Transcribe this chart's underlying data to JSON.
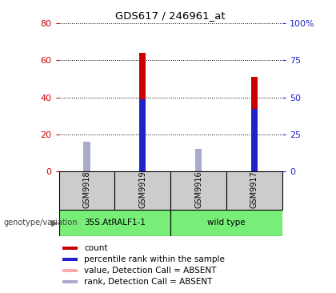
{
  "title": "GDS617 / 246961_at",
  "samples": [
    "GSM9918",
    "GSM9919",
    "GSM9916",
    "GSM9917"
  ],
  "count_values": [
    0,
    64,
    0,
    51
  ],
  "percentile_values": [
    0,
    49,
    0,
    42
  ],
  "absent_value_values": [
    16,
    0,
    9,
    0
  ],
  "absent_rank_values": [
    20,
    0,
    15,
    0
  ],
  "ylim_left": [
    0,
    80
  ],
  "ylim_right": [
    0,
    100
  ],
  "yticks_left": [
    0,
    20,
    40,
    60,
    80
  ],
  "yticks_right": [
    0,
    25,
    50,
    75,
    100
  ],
  "ytick_labels_right": [
    "0",
    "25",
    "50",
    "75",
    "100%"
  ],
  "color_count": "#cc0000",
  "color_percentile": "#2222cc",
  "color_absent_value": "#ffaaaa",
  "color_absent_rank": "#aaaacc",
  "color_group": "#77ee77",
  "color_sample_bg": "#cccccc",
  "background_color": "#ffffff",
  "legend_items": [
    "count",
    "percentile rank within the sample",
    "value, Detection Call = ABSENT",
    "rank, Detection Call = ABSENT"
  ],
  "legend_colors": [
    "#cc0000",
    "#2222cc",
    "#ffaaaa",
    "#aaaacc"
  ],
  "thin_bar_width": 0.12,
  "rank_square_size": 0.1
}
